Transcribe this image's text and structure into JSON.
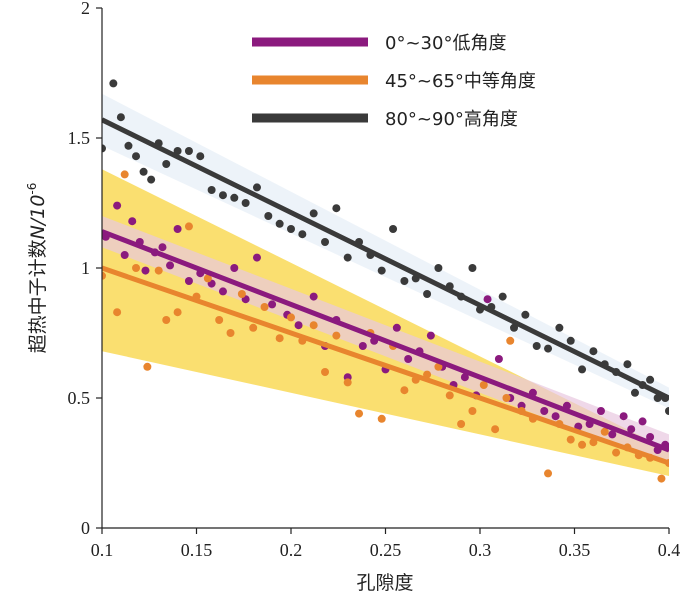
{
  "chart_data": {
    "type": "scatter",
    "xlabel": "孔隙度",
    "ylabel": "超热中子计数",
    "ylabel_unit": "N/10",
    "ylabel_exp": "-6",
    "xlim": [
      0.1,
      0.4
    ],
    "ylim": [
      0,
      2
    ],
    "x_ticks": [
      "0.1",
      "0.15",
      "0.2",
      "0.25",
      "0.3",
      "0.35",
      "0.4"
    ],
    "y_ticks": [
      "0",
      "0.5",
      "1",
      "1.5",
      "2"
    ],
    "grid": false,
    "legend_position": "top",
    "series": [
      {
        "name": "0°~30°低角度",
        "color": "#8b1a7e",
        "band_color": "#e8c8e0",
        "fit": {
          "x": [
            0.1,
            0.4
          ],
          "y": [
            1.14,
            0.3
          ]
        },
        "band": {
          "x": [
            0.1,
            0.4
          ],
          "upper": [
            1.2,
            0.36
          ],
          "lower": [
            1.08,
            0.24
          ]
        },
        "points": [
          [
            0.102,
            1.12
          ],
          [
            0.108,
            1.24
          ],
          [
            0.112,
            1.05
          ],
          [
            0.116,
            1.18
          ],
          [
            0.12,
            1.1
          ],
          [
            0.123,
            0.99
          ],
          [
            0.128,
            1.06
          ],
          [
            0.132,
            1.08
          ],
          [
            0.136,
            1.01
          ],
          [
            0.14,
            1.15
          ],
          [
            0.146,
            0.95
          ],
          [
            0.152,
            0.98
          ],
          [
            0.158,
            0.94
          ],
          [
            0.164,
            0.91
          ],
          [
            0.17,
            1.0
          ],
          [
            0.176,
            0.88
          ],
          [
            0.182,
            1.04
          ],
          [
            0.19,
            0.86
          ],
          [
            0.198,
            0.82
          ],
          [
            0.204,
            0.78
          ],
          [
            0.212,
            0.89
          ],
          [
            0.218,
            0.7
          ],
          [
            0.224,
            0.8
          ],
          [
            0.23,
            0.58
          ],
          [
            0.238,
            0.7
          ],
          [
            0.244,
            0.72
          ],
          [
            0.25,
            0.61
          ],
          [
            0.256,
            0.77
          ],
          [
            0.262,
            0.65
          ],
          [
            0.268,
            0.68
          ],
          [
            0.274,
            0.74
          ],
          [
            0.28,
            0.62
          ],
          [
            0.286,
            0.55
          ],
          [
            0.292,
            0.58
          ],
          [
            0.298,
            0.51
          ],
          [
            0.304,
            0.88
          ],
          [
            0.31,
            0.65
          ],
          [
            0.316,
            0.5
          ],
          [
            0.322,
            0.47
          ],
          [
            0.328,
            0.52
          ],
          [
            0.334,
            0.45
          ],
          [
            0.34,
            0.43
          ],
          [
            0.346,
            0.47
          ],
          [
            0.352,
            0.39
          ],
          [
            0.358,
            0.4
          ],
          [
            0.364,
            0.45
          ],
          [
            0.37,
            0.36
          ],
          [
            0.376,
            0.43
          ],
          [
            0.38,
            0.38
          ],
          [
            0.386,
            0.41
          ],
          [
            0.39,
            0.35
          ],
          [
            0.394,
            0.3
          ],
          [
            0.398,
            0.32
          ],
          [
            0.4,
            0.31
          ]
        ]
      },
      {
        "name": "45°~65°中等角度",
        "color": "#e8852e",
        "band_color": "#f8d440",
        "fit": {
          "x": [
            0.1,
            0.4
          ],
          "y": [
            1.0,
            0.25
          ]
        },
        "band": {
          "x": [
            0.1,
            0.4
          ],
          "upper": [
            1.38,
            0.3
          ],
          "lower": [
            0.68,
            0.2
          ]
        },
        "points": [
          [
            0.1,
            0.97
          ],
          [
            0.108,
            0.83
          ],
          [
            0.112,
            1.36
          ],
          [
            0.118,
            1.0
          ],
          [
            0.124,
            0.62
          ],
          [
            0.13,
            0.99
          ],
          [
            0.134,
            0.8
          ],
          [
            0.14,
            0.83
          ],
          [
            0.146,
            1.16
          ],
          [
            0.15,
            0.89
          ],
          [
            0.156,
            0.96
          ],
          [
            0.162,
            0.8
          ],
          [
            0.168,
            0.75
          ],
          [
            0.174,
            0.9
          ],
          [
            0.18,
            0.77
          ],
          [
            0.186,
            0.85
          ],
          [
            0.194,
            0.73
          ],
          [
            0.2,
            0.81
          ],
          [
            0.206,
            0.72
          ],
          [
            0.212,
            0.78
          ],
          [
            0.218,
            0.6
          ],
          [
            0.224,
            0.74
          ],
          [
            0.23,
            0.56
          ],
          [
            0.236,
            0.44
          ],
          [
            0.242,
            0.75
          ],
          [
            0.248,
            0.42
          ],
          [
            0.254,
            0.7
          ],
          [
            0.26,
            0.53
          ],
          [
            0.266,
            0.57
          ],
          [
            0.272,
            0.59
          ],
          [
            0.278,
            0.62
          ],
          [
            0.284,
            0.51
          ],
          [
            0.29,
            0.4
          ],
          [
            0.296,
            0.45
          ],
          [
            0.302,
            0.55
          ],
          [
            0.308,
            0.38
          ],
          [
            0.314,
            0.5
          ],
          [
            0.316,
            0.72
          ],
          [
            0.322,
            0.45
          ],
          [
            0.328,
            0.42
          ],
          [
            0.336,
            0.21
          ],
          [
            0.342,
            0.4
          ],
          [
            0.348,
            0.34
          ],
          [
            0.354,
            0.32
          ],
          [
            0.36,
            0.33
          ],
          [
            0.366,
            0.37
          ],
          [
            0.372,
            0.29
          ],
          [
            0.378,
            0.31
          ],
          [
            0.384,
            0.28
          ],
          [
            0.39,
            0.27
          ],
          [
            0.396,
            0.19
          ],
          [
            0.4,
            0.25
          ]
        ]
      },
      {
        "name": "80°~90°高角度",
        "color": "#3a3a3a",
        "band_color": "#e6eef6",
        "fit": {
          "x": [
            0.1,
            0.4
          ],
          "y": [
            1.57,
            0.5
          ]
        },
        "band": {
          "x": [
            0.1,
            0.4
          ],
          "upper": [
            1.67,
            0.54
          ],
          "lower": [
            1.47,
            0.46
          ]
        },
        "points": [
          [
            0.1,
            1.46
          ],
          [
            0.106,
            1.71
          ],
          [
            0.11,
            1.58
          ],
          [
            0.114,
            1.47
          ],
          [
            0.118,
            1.43
          ],
          [
            0.122,
            1.37
          ],
          [
            0.126,
            1.34
          ],
          [
            0.13,
            1.48
          ],
          [
            0.134,
            1.4
          ],
          [
            0.14,
            1.45
          ],
          [
            0.146,
            1.45
          ],
          [
            0.152,
            1.43
          ],
          [
            0.158,
            1.3
          ],
          [
            0.164,
            1.28
          ],
          [
            0.17,
            1.27
          ],
          [
            0.176,
            1.25
          ],
          [
            0.182,
            1.31
          ],
          [
            0.188,
            1.2
          ],
          [
            0.194,
            1.17
          ],
          [
            0.2,
            1.15
          ],
          [
            0.206,
            1.13
          ],
          [
            0.212,
            1.21
          ],
          [
            0.218,
            1.1
          ],
          [
            0.224,
            1.23
          ],
          [
            0.23,
            1.04
          ],
          [
            0.236,
            1.1
          ],
          [
            0.242,
            1.05
          ],
          [
            0.248,
            0.99
          ],
          [
            0.254,
            1.15
          ],
          [
            0.26,
            0.95
          ],
          [
            0.266,
            0.96
          ],
          [
            0.272,
            0.9
          ],
          [
            0.278,
            1.0
          ],
          [
            0.284,
            0.93
          ],
          [
            0.29,
            0.89
          ],
          [
            0.296,
            1.0
          ],
          [
            0.3,
            0.84
          ],
          [
            0.306,
            0.85
          ],
          [
            0.312,
            0.89
          ],
          [
            0.318,
            0.77
          ],
          [
            0.324,
            0.82
          ],
          [
            0.33,
            0.7
          ],
          [
            0.336,
            0.69
          ],
          [
            0.342,
            0.77
          ],
          [
            0.348,
            0.72
          ],
          [
            0.354,
            0.61
          ],
          [
            0.36,
            0.68
          ],
          [
            0.366,
            0.63
          ],
          [
            0.372,
            0.6
          ],
          [
            0.378,
            0.63
          ],
          [
            0.382,
            0.52
          ],
          [
            0.386,
            0.55
          ],
          [
            0.39,
            0.57
          ],
          [
            0.394,
            0.5
          ],
          [
            0.398,
            0.5
          ],
          [
            0.4,
            0.45
          ]
        ]
      }
    ]
  }
}
